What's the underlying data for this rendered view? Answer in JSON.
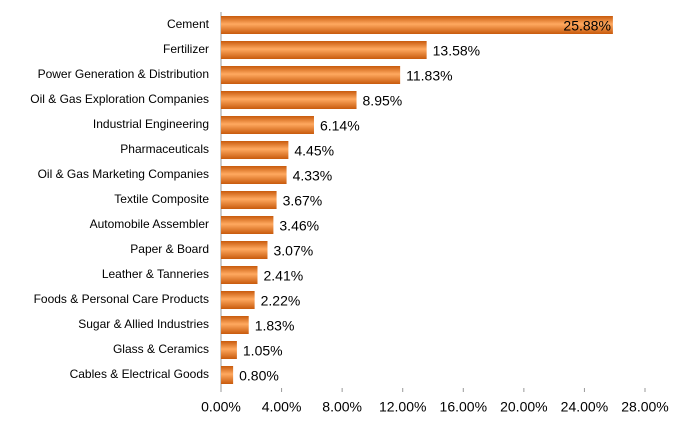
{
  "chart_data": {
    "type": "bar",
    "orientation": "horizontal",
    "categories": [
      "Cement",
      "Fertilizer",
      "Power Generation & Distribution",
      "Oil & Gas Exploration Companies",
      "Industrial Engineering",
      "Pharmaceuticals",
      "Oil & Gas Marketing Companies",
      "Textile Composite",
      "Automobile Assembler",
      "Paper & Board",
      "Leather & Tanneries",
      "Foods & Personal Care Products",
      "Sugar & Allied Industries",
      "Glass & Ceramics",
      "Cables & Electrical Goods"
    ],
    "values": [
      25.88,
      13.58,
      11.83,
      8.95,
      6.14,
      4.45,
      4.33,
      3.67,
      3.46,
      3.07,
      2.41,
      2.22,
      1.83,
      1.05,
      0.8
    ],
    "value_labels": [
      "25.88%",
      "13.58%",
      "11.83%",
      "8.95%",
      "6.14%",
      "4.45%",
      "4.33%",
      "3.67%",
      "3.46%",
      "3.07%",
      "2.41%",
      "2.22%",
      "1.83%",
      "1.05%",
      "0.80%"
    ],
    "color": "#e8701a",
    "xlim": [
      0,
      28
    ],
    "xticks": [
      {
        "value": 0,
        "label": "0.00%"
      },
      {
        "value": 4,
        "label": "4.00%"
      },
      {
        "value": 8,
        "label": "8.00%"
      },
      {
        "value": 12,
        "label": "12.00%"
      },
      {
        "value": 16,
        "label": "16.00%"
      },
      {
        "value": 20,
        "label": "20.00%"
      },
      {
        "value": 24,
        "label": "24.00%"
      },
      {
        "value": 28,
        "label": "28.00%"
      }
    ]
  }
}
